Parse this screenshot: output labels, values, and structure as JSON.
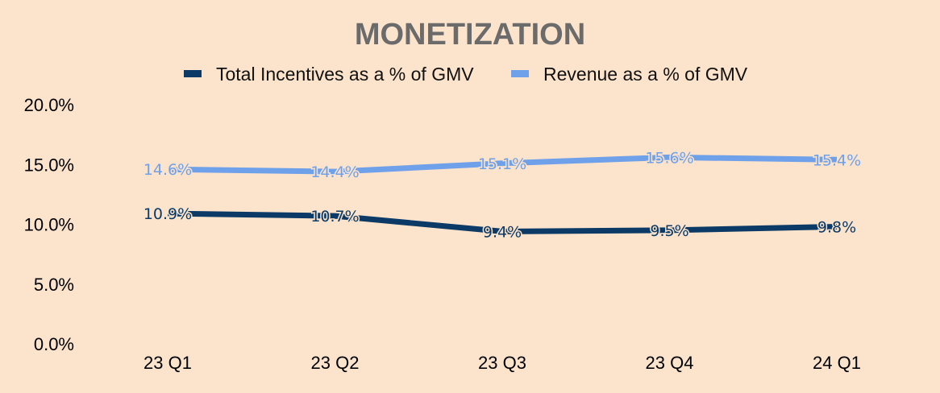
{
  "colors": {
    "background": "#FCE4CC",
    "title": "#6B6B6B",
    "series_incentives": "#0B3A66",
    "series_revenue": "#6FA0EA"
  },
  "chart_data": {
    "type": "line",
    "title": "MONETIZATION",
    "categories": [
      "23 Q1",
      "23 Q2",
      "23 Q3",
      "23 Q4",
      "24 Q1"
    ],
    "series": [
      {
        "name": "Total Incentives as a % of GMV",
        "values": [
          10.9,
          10.7,
          9.4,
          9.5,
          9.8
        ],
        "labels": [
          "10.9%",
          "10.7%",
          "9.4%",
          "9.5%",
          "9.8%"
        ]
      },
      {
        "name": "Revenue as a % of GMV",
        "values": [
          14.6,
          14.4,
          15.1,
          15.6,
          15.4
        ],
        "labels": [
          "14.6%",
          "14.4%",
          "15.1%",
          "15.6%",
          "15.4%"
        ]
      }
    ],
    "y_ticks": [
      0,
      5,
      10,
      15,
      20
    ],
    "y_tick_labels": [
      "0.0%",
      "5.0%",
      "10.0%",
      "15.0%",
      "20.0%"
    ],
    "ylim": [
      0,
      20
    ],
    "xlabel": "",
    "ylabel": "",
    "legend_position": "top-center",
    "grid": false
  }
}
